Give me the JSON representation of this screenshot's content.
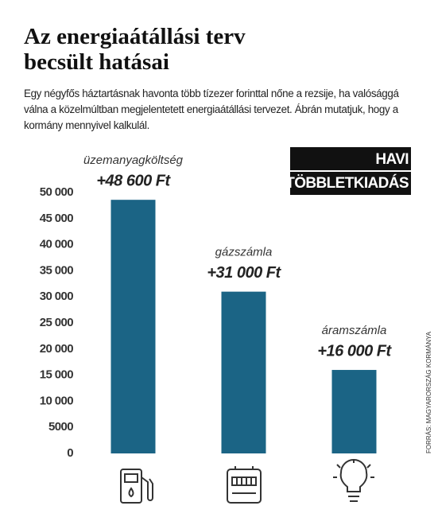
{
  "chart_data": {
    "type": "bar",
    "title": "Az energiaátállási terv becsült hatásai",
    "subtitle": "Egy négyfős háztartásnak havonta több tízezer forinttal nőne a rezsije, ha valósággá válna a közelmúltban megjelentetett energiaátállási tervezet. Ábrán mutatjuk, hogy a kormány mennyivel kalkulál.",
    "badge": [
      "HAVI",
      "TÖBBLETKIADÁS"
    ],
    "categories": [
      "üzemanyagköltség",
      "gázszámla",
      "áramszámla"
    ],
    "values": [
      48600,
      31000,
      16000
    ],
    "value_labels": [
      "+48 600 Ft",
      "+31 000 Ft",
      "+16 000 Ft"
    ],
    "color": "#1b6485",
    "ylim": [
      0,
      50000
    ],
    "yticks": [
      0,
      5000,
      {
        "value": 10000,
        "label": "10 000"
      },
      {
        "value": 15000,
        "label": "15 000"
      },
      {
        "value": 20000,
        "label": "20 000"
      },
      {
        "value": 25000,
        "label": "25 000"
      },
      {
        "value": 30000,
        "label": "30 000"
      },
      {
        "value": 35000,
        "label": "35 000"
      },
      {
        "value": 40000,
        "label": "40 000"
      },
      {
        "value": 45000,
        "label": "45 000"
      },
      {
        "value": 50000,
        "label": "50 000"
      }
    ],
    "grid": false,
    "source": "FORRÁS: MAGYARORSZÁG KORMÁNYA"
  }
}
